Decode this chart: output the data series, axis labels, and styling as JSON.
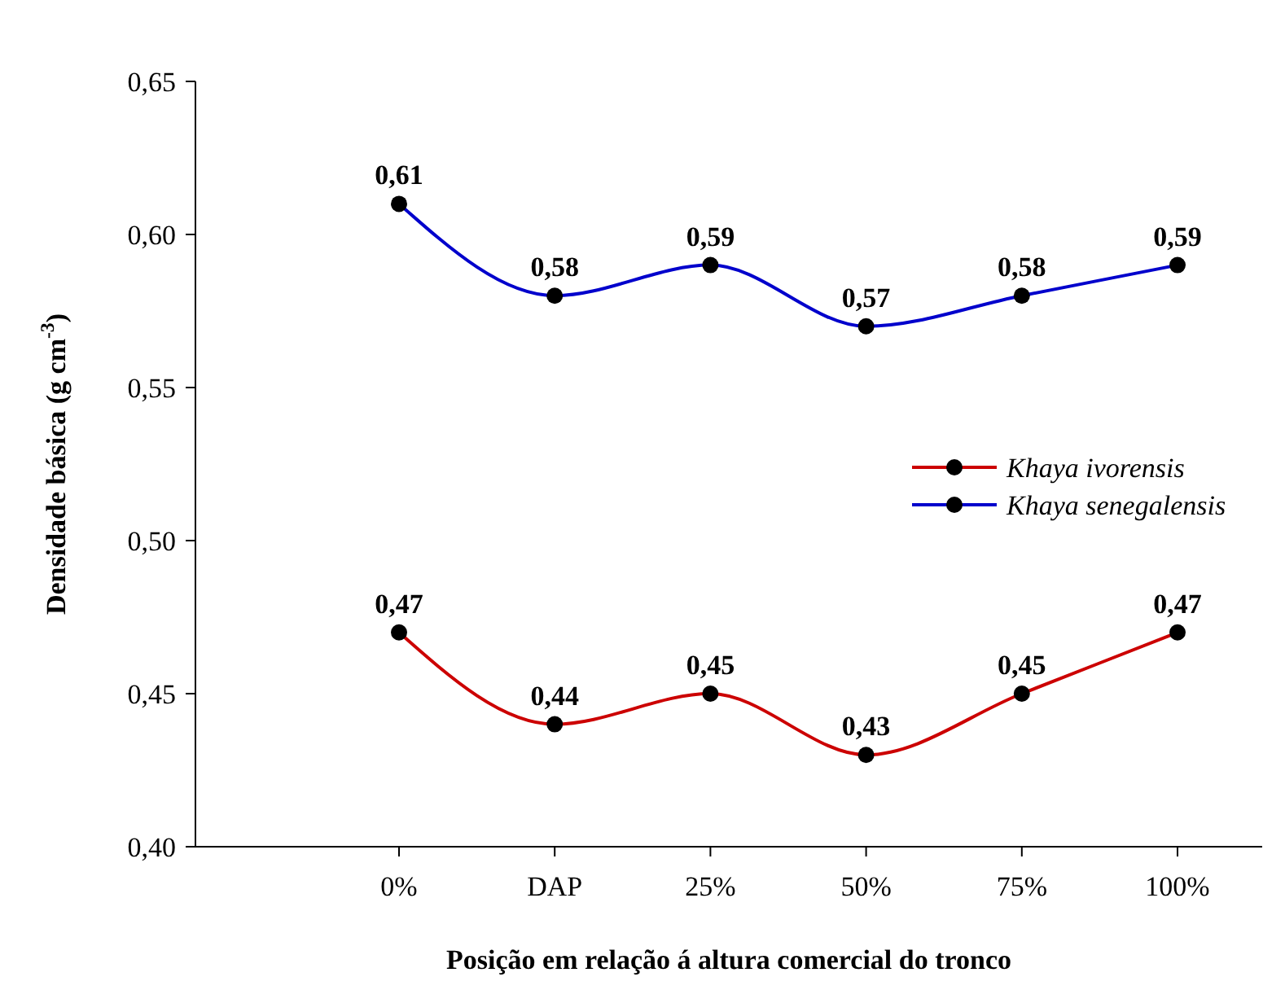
{
  "chart_data": {
    "type": "line",
    "xlabel": "Posição em relação á altura comercial do tronco",
    "ylabel": "Densidade básica (g cm$^{-3}$)",
    "categories": [
      "0%",
      "DAP",
      "25%",
      "50%",
      "75%",
      "100%"
    ],
    "series": [
      {
        "name": "Khaya ivorensis",
        "color": "#cc0000",
        "values": [
          0.47,
          0.44,
          0.45,
          0.43,
          0.45,
          0.47
        ],
        "value_labels": [
          "0,47",
          "0,44",
          "0,45",
          "0,43",
          "0,45",
          "0,47"
        ]
      },
      {
        "name": "Khaya senegalensis",
        "color": "#0000cc",
        "values": [
          0.61,
          0.58,
          0.59,
          0.57,
          0.58,
          0.59
        ],
        "value_labels": [
          "0,61",
          "0,58",
          "0,59",
          "0,57",
          "0,58",
          "0,59"
        ]
      }
    ],
    "ylim": [
      0.4,
      0.65
    ],
    "yticks": [
      {
        "value": 0.4,
        "label": "0,40"
      },
      {
        "value": 0.45,
        "label": "0,45"
      },
      {
        "value": 0.5,
        "label": "0,50"
      },
      {
        "value": 0.55,
        "label": "0,55"
      },
      {
        "value": 0.6,
        "label": "0,60"
      },
      {
        "value": 0.65,
        "label": "0,65"
      }
    ],
    "legend": "right",
    "marker": "circle",
    "line_style": "solid",
    "grid": false
  }
}
